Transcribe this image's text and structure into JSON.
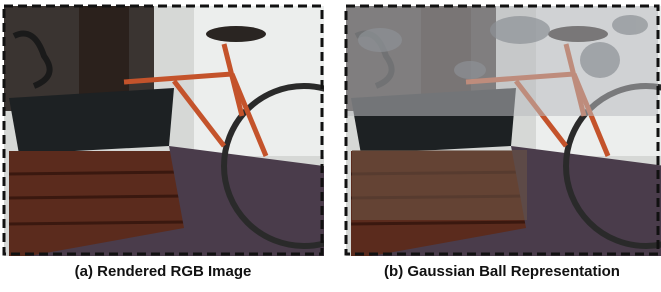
{
  "figure": {
    "panels": [
      {
        "caption": "(a) Rendered RGB Image"
      },
      {
        "caption": "(b) Gaussian Ball Representation"
      }
    ]
  }
}
